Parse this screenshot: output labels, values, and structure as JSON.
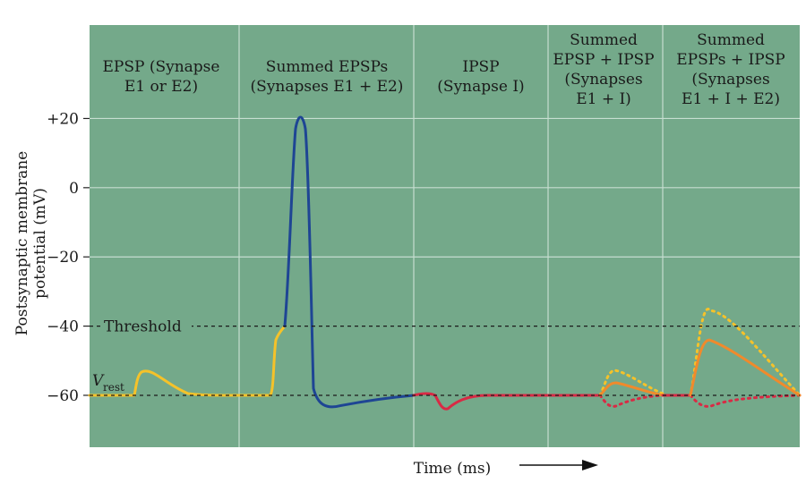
{
  "chart_data": {
    "type": "line",
    "xlabel": "Time (ms)",
    "ylabel_lines": [
      "Postsynaptic membrane",
      "potential (mV)"
    ],
    "yticks": [
      "+20",
      "0",
      "−20",
      "−40",
      "−60"
    ],
    "ytick_values": [
      20,
      0,
      -20,
      -40,
      -60
    ],
    "ylim": [
      -75,
      47
    ],
    "grid": true,
    "threshold": {
      "label": "Threshold",
      "value": -40
    },
    "rest": {
      "label_main": "V",
      "label_sub": "rest",
      "value": -60
    },
    "panels": [
      {
        "lines": [
          "EPSP (Synapse",
          "E1 or E2)"
        ]
      },
      {
        "lines": [
          "Summed EPSPs",
          "(Synapses E1 + E2)"
        ]
      },
      {
        "lines": [
          "IPSP",
          "(Synapse I)"
        ]
      },
      {
        "lines": [
          "Summed",
          "EPSP + IPSP",
          "(Synapses",
          "E1 + I)"
        ]
      },
      {
        "lines": [
          "Summed",
          "EPSPs + IPSP",
          "(Synapses",
          "E1 + I + E2)"
        ]
      }
    ],
    "colors": {
      "background": "#74a98a",
      "epsp": "#f5c22a",
      "action_potential": "#1e4594",
      "ipsp": "#d92a45",
      "summed": "#f08a2c"
    }
  }
}
